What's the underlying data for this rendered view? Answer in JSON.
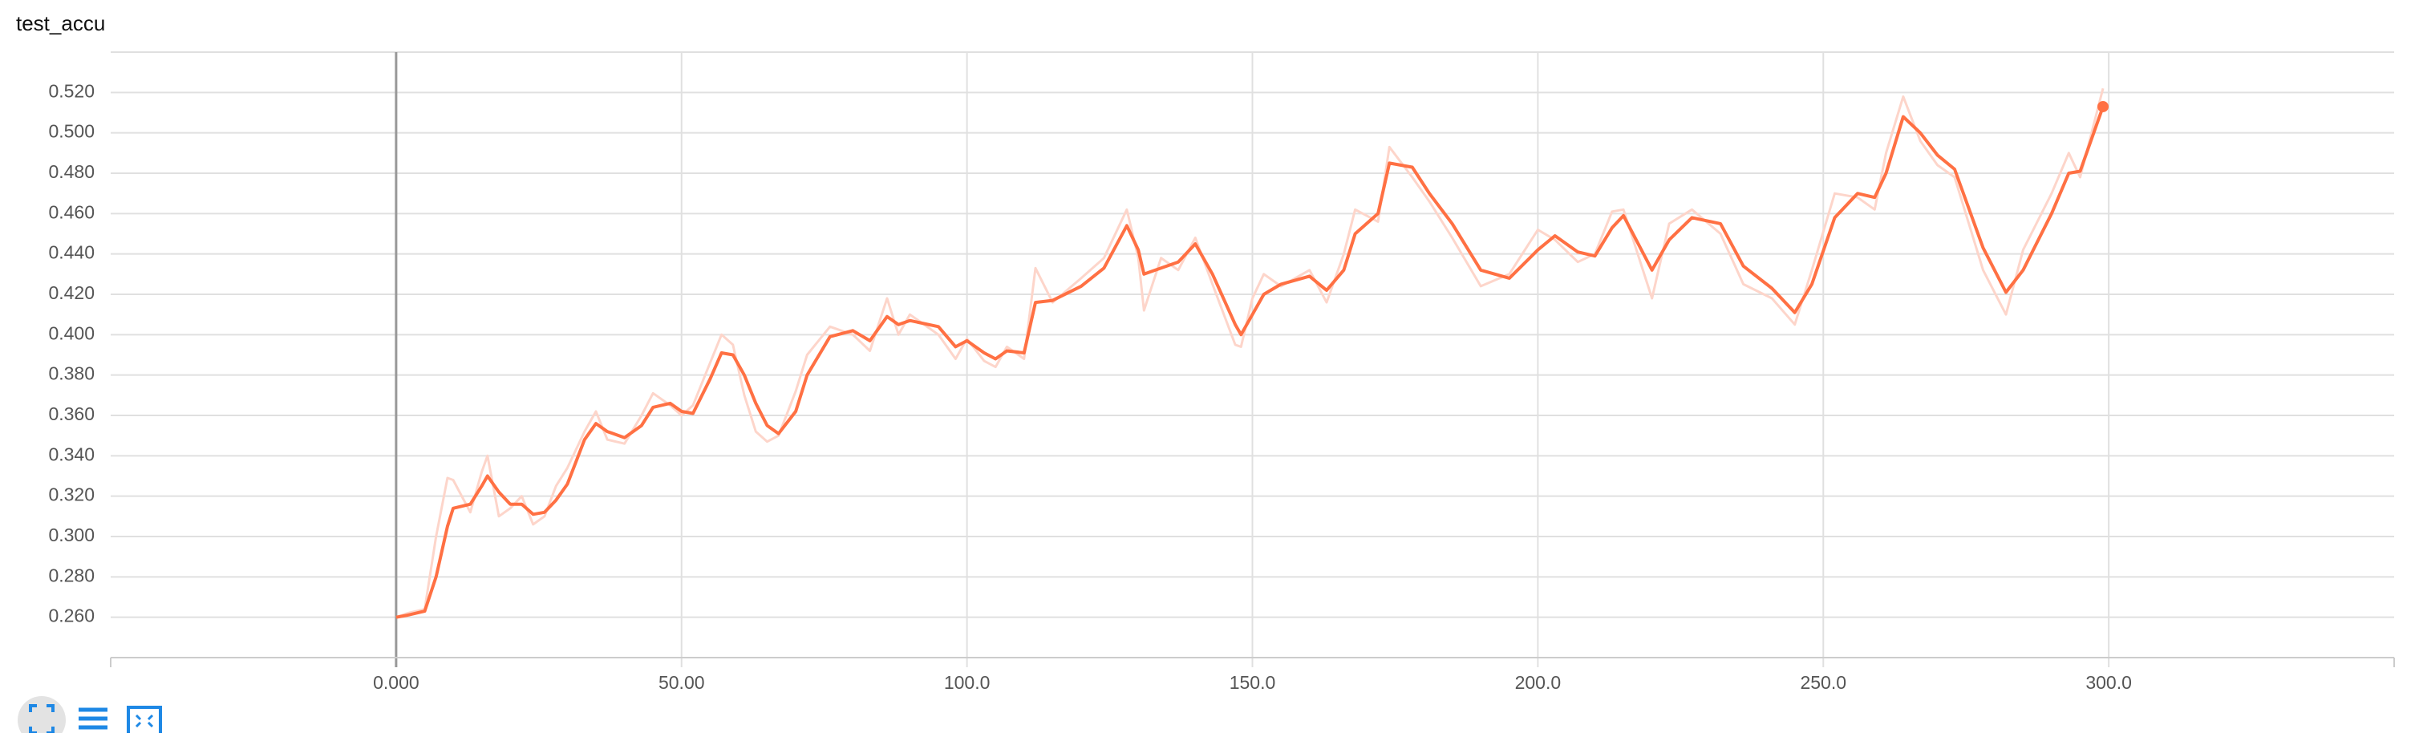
{
  "chart_data": {
    "type": "line",
    "title": "test_accu",
    "x": [
      0,
      2,
      5,
      7,
      9,
      10,
      13,
      15,
      16,
      18,
      20,
      22,
      24,
      26,
      28,
      30,
      33,
      35,
      37,
      40,
      43,
      45,
      48,
      50,
      52,
      55,
      57,
      59,
      61,
      63,
      65,
      67,
      70,
      72,
      76,
      80,
      83,
      86,
      88,
      90,
      95,
      98,
      100,
      103,
      105,
      107,
      110,
      112,
      115,
      120,
      124,
      128,
      130,
      131,
      134,
      137,
      140,
      143,
      147,
      148,
      150,
      152,
      155,
      160,
      163,
      166,
      168,
      172,
      174,
      178,
      181,
      185,
      190,
      195,
      200,
      203,
      207,
      210,
      213,
      215,
      220,
      223,
      227,
      232,
      236,
      241,
      245,
      248,
      252,
      256,
      259,
      261,
      264,
      267,
      270,
      273,
      278,
      282,
      285,
      290,
      293,
      295,
      299
    ],
    "series": [
      {
        "color": "#fdd5ca",
        "values": [
          0.26,
          0.262,
          0.264,
          0.3,
          0.329,
          0.328,
          0.312,
          0.332,
          0.34,
          0.31,
          0.314,
          0.32,
          0.306,
          0.31,
          0.325,
          0.334,
          0.352,
          0.362,
          0.348,
          0.346,
          0.36,
          0.371,
          0.365,
          0.36,
          0.365,
          0.386,
          0.4,
          0.395,
          0.37,
          0.352,
          0.347,
          0.35,
          0.372,
          0.39,
          0.404,
          0.4,
          0.392,
          0.418,
          0.4,
          0.41,
          0.4,
          0.388,
          0.398,
          0.387,
          0.384,
          0.394,
          0.388,
          0.433,
          0.416,
          0.428,
          0.438,
          0.462,
          0.438,
          0.412,
          0.438,
          0.432,
          0.448,
          0.425,
          0.395,
          0.394,
          0.418,
          0.43,
          0.424,
          0.432,
          0.416,
          0.44,
          0.462,
          0.456,
          0.493,
          0.478,
          0.466,
          0.448,
          0.424,
          0.43,
          0.452,
          0.447,
          0.436,
          0.44,
          0.461,
          0.462,
          0.418,
          0.455,
          0.462,
          0.45,
          0.425,
          0.418,
          0.405,
          0.432,
          0.47,
          0.468,
          0.462,
          0.49,
          0.518,
          0.496,
          0.484,
          0.478,
          0.432,
          0.41,
          0.442,
          0.47,
          0.49,
          0.478,
          0.522
        ]
      },
      {
        "color": "#ff7043",
        "values": [
          0.26,
          0.261,
          0.263,
          0.28,
          0.305,
          0.314,
          0.316,
          0.325,
          0.33,
          0.322,
          0.316,
          0.316,
          0.311,
          0.312,
          0.318,
          0.326,
          0.348,
          0.356,
          0.352,
          0.349,
          0.355,
          0.364,
          0.366,
          0.362,
          0.361,
          0.378,
          0.391,
          0.39,
          0.38,
          0.366,
          0.355,
          0.351,
          0.362,
          0.38,
          0.399,
          0.402,
          0.397,
          0.409,
          0.405,
          0.407,
          0.404,
          0.394,
          0.397,
          0.391,
          0.388,
          0.392,
          0.391,
          0.416,
          0.417,
          0.424,
          0.433,
          0.454,
          0.442,
          0.43,
          0.433,
          0.436,
          0.445,
          0.43,
          0.405,
          0.4,
          0.41,
          0.42,
          0.425,
          0.429,
          0.422,
          0.432,
          0.45,
          0.46,
          0.485,
          0.483,
          0.47,
          0.455,
          0.432,
          0.428,
          0.442,
          0.449,
          0.441,
          0.439,
          0.453,
          0.459,
          0.432,
          0.447,
          0.458,
          0.455,
          0.434,
          0.423,
          0.411,
          0.425,
          0.458,
          0.47,
          0.468,
          0.48,
          0.508,
          0.5,
          0.489,
          0.482,
          0.443,
          0.421,
          0.432,
          0.46,
          0.48,
          0.481,
          0.513
        ]
      }
    ],
    "xlim": [
      -50,
      350
    ],
    "ylim": [
      0.24,
      0.54
    ],
    "xticks": [
      {
        "value": 0,
        "label": "0.000"
      },
      {
        "value": 50,
        "label": "50.00"
      },
      {
        "value": 100,
        "label": "100.0"
      },
      {
        "value": 150,
        "label": "150.0"
      },
      {
        "value": 200,
        "label": "200.0"
      },
      {
        "value": 250,
        "label": "250.0"
      },
      {
        "value": 300,
        "label": "300.0"
      }
    ],
    "yticks": [
      {
        "value": 0.26,
        "label": "0.260"
      },
      {
        "value": 0.28,
        "label": "0.280"
      },
      {
        "value": 0.3,
        "label": "0.300"
      },
      {
        "value": 0.32,
        "label": "0.320"
      },
      {
        "value": 0.34,
        "label": "0.340"
      },
      {
        "value": 0.36,
        "label": "0.360"
      },
      {
        "value": 0.38,
        "label": "0.380"
      },
      {
        "value": 0.4,
        "label": "0.400"
      },
      {
        "value": 0.42,
        "label": "0.420"
      },
      {
        "value": 0.44,
        "label": "0.440"
      },
      {
        "value": 0.46,
        "label": "0.460"
      },
      {
        "value": 0.48,
        "label": "0.480"
      },
      {
        "value": 0.5,
        "label": "0.500"
      },
      {
        "value": 0.52,
        "label": "0.520"
      }
    ],
    "grid": true
  }
}
